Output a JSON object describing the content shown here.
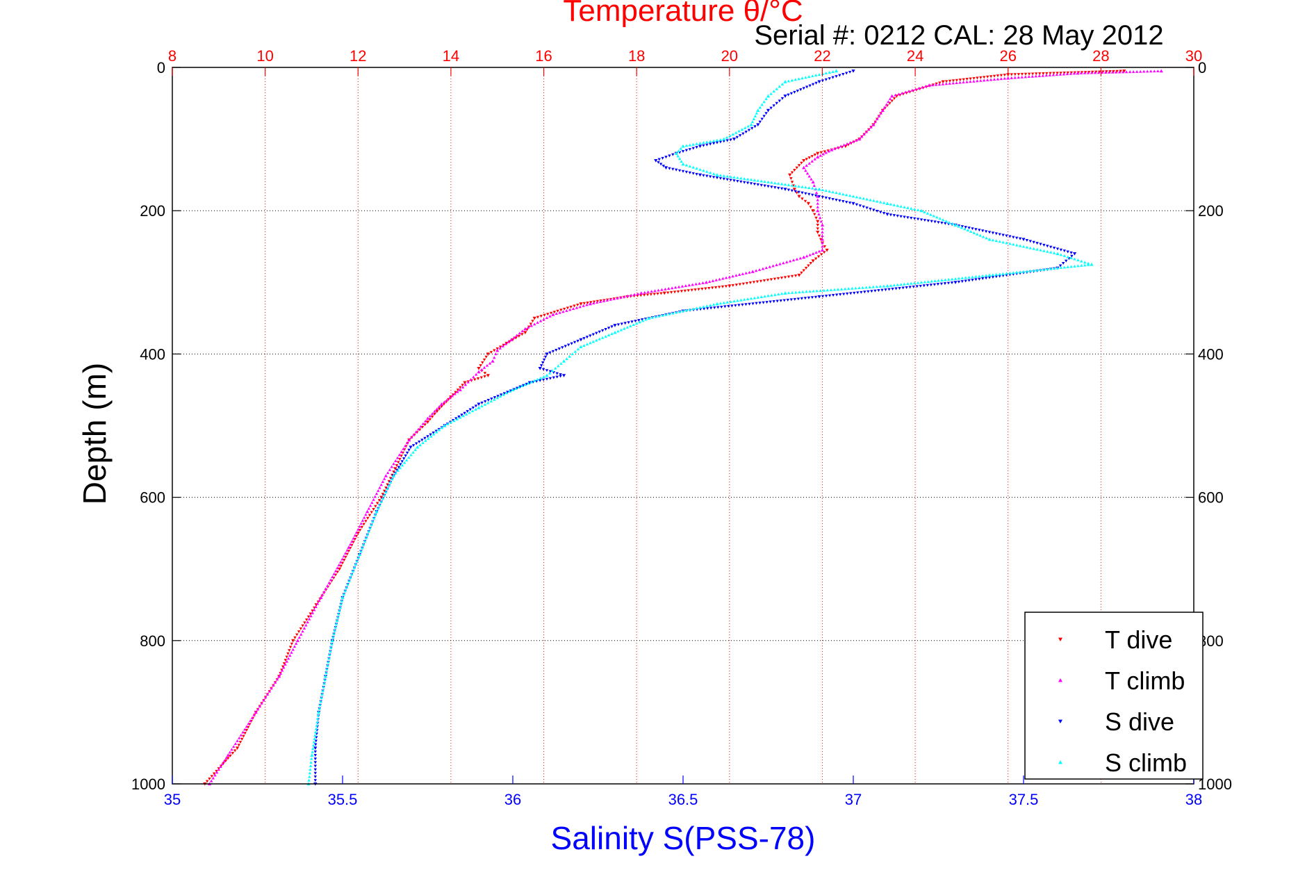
{
  "chart_data": {
    "type": "scatter",
    "title": "Temperature θ/°C",
    "subtitle": "Serial #: 0212  CAL: 28 May 2012",
    "ylabel": "Depth (m)",
    "xlabel": "Salinity S(PSS-78)",
    "y_axis": {
      "lim": [
        0,
        1000
      ],
      "reversed": true,
      "ticks": [
        0,
        200,
        400,
        600,
        800,
        1000
      ],
      "tick_labels": [
        "0",
        "200",
        "400",
        "600",
        "800",
        "1000"
      ]
    },
    "x_axis_top": {
      "label": "Temperature θ/°C",
      "lim": [
        8,
        30
      ],
      "ticks": [
        8,
        10,
        12,
        14,
        16,
        18,
        20,
        22,
        24,
        26,
        28,
        30
      ],
      "tick_labels": [
        "8",
        "10",
        "12",
        "14",
        "16",
        "18",
        "20",
        "22",
        "24",
        "26",
        "28",
        "30"
      ],
      "color": "#ff0000",
      "grid": "dotted"
    },
    "x_axis_bottom": {
      "label": "Salinity S(PSS-78)",
      "lim": [
        35,
        38
      ],
      "ticks": [
        35,
        35.5,
        36,
        36.5,
        37,
        37.5,
        38
      ],
      "tick_labels": [
        "35",
        "35.5",
        "36",
        "36.5",
        "37",
        "37.5",
        "38"
      ],
      "color": "#0000ff"
    },
    "legend": {
      "position": "bottom-right",
      "entries": [
        "T dive",
        "T climb",
        "S dive",
        "S climb"
      ]
    },
    "series": [
      {
        "name": "T dive",
        "axis": "temperature",
        "color": "#ff0000",
        "marker": "triangle-down",
        "points": [
          [
            28.5,
            5
          ],
          [
            26,
            10
          ],
          [
            24.6,
            20
          ],
          [
            23.6,
            40
          ],
          [
            23.3,
            60
          ],
          [
            23.1,
            80
          ],
          [
            22.8,
            100
          ],
          [
            22.5,
            110
          ],
          [
            21.9,
            120
          ],
          [
            21.6,
            130
          ],
          [
            21.3,
            150
          ],
          [
            21.4,
            170
          ],
          [
            21.5,
            180
          ],
          [
            21.7,
            190
          ],
          [
            21.8,
            200
          ],
          [
            21.9,
            215
          ],
          [
            21.9,
            230
          ],
          [
            22.0,
            245
          ],
          [
            22.1,
            255
          ],
          [
            21.8,
            270
          ],
          [
            21.5,
            290
          ],
          [
            20.0,
            305
          ],
          [
            18.6,
            315
          ],
          [
            17.8,
            320
          ],
          [
            16.8,
            330
          ],
          [
            15.8,
            350
          ],
          [
            15.6,
            370
          ],
          [
            15.2,
            385
          ],
          [
            14.8,
            400
          ],
          [
            14.6,
            420
          ],
          [
            14.8,
            430
          ],
          [
            14.3,
            440
          ],
          [
            14.0,
            460
          ],
          [
            13.7,
            480
          ],
          [
            13.5,
            495
          ],
          [
            13.1,
            520
          ],
          [
            12.8,
            560
          ],
          [
            12.5,
            600
          ],
          [
            12.0,
            650
          ],
          [
            11.6,
            700
          ],
          [
            11.1,
            750
          ],
          [
            10.6,
            800
          ],
          [
            10.3,
            850
          ],
          [
            9.8,
            900
          ],
          [
            9.4,
            950
          ],
          [
            8.7,
            1000
          ]
        ]
      },
      {
        "name": "T climb",
        "axis": "temperature",
        "color": "#ff00ff",
        "marker": "triangle-up",
        "points": [
          [
            29.3,
            5
          ],
          [
            27.5,
            8
          ],
          [
            26,
            15
          ],
          [
            24.3,
            25
          ],
          [
            23.5,
            40
          ],
          [
            23.3,
            60
          ],
          [
            23.1,
            80
          ],
          [
            22.8,
            100
          ],
          [
            22.2,
            115
          ],
          [
            21.9,
            125
          ],
          [
            21.6,
            140
          ],
          [
            21.8,
            160
          ],
          [
            21.9,
            180
          ],
          [
            21.9,
            200
          ],
          [
            22.0,
            220
          ],
          [
            22.0,
            240
          ],
          [
            22.0,
            255
          ],
          [
            21.6,
            265
          ],
          [
            20.5,
            285
          ],
          [
            19.5,
            300
          ],
          [
            18.1,
            315
          ],
          [
            17.0,
            330
          ],
          [
            16.2,
            345
          ],
          [
            15.6,
            365
          ],
          [
            15.3,
            380
          ],
          [
            15.0,
            395
          ],
          [
            14.9,
            410
          ],
          [
            14.6,
            425
          ],
          [
            14.2,
            450
          ],
          [
            13.8,
            470
          ],
          [
            13.5,
            490
          ],
          [
            13.1,
            520
          ],
          [
            12.6,
            570
          ],
          [
            12.2,
            620
          ],
          [
            11.8,
            670
          ],
          [
            11.2,
            740
          ],
          [
            10.7,
            800
          ],
          [
            10.3,
            850
          ],
          [
            9.8,
            900
          ],
          [
            9.2,
            960
          ],
          [
            8.8,
            1000
          ]
        ]
      },
      {
        "name": "S dive",
        "axis": "salinity",
        "color": "#0000ff",
        "marker": "triangle-down",
        "points": [
          [
            37.0,
            5
          ],
          [
            36.9,
            20
          ],
          [
            36.8,
            40
          ],
          [
            36.75,
            60
          ],
          [
            36.72,
            80
          ],
          [
            36.65,
            100
          ],
          [
            36.55,
            110
          ],
          [
            36.48,
            120
          ],
          [
            36.42,
            130
          ],
          [
            36.45,
            140
          ],
          [
            36.55,
            150
          ],
          [
            36.8,
            170
          ],
          [
            37.0,
            190
          ],
          [
            37.1,
            205
          ],
          [
            37.3,
            220
          ],
          [
            37.5,
            240
          ],
          [
            37.65,
            260
          ],
          [
            37.6,
            280
          ],
          [
            37.3,
            300
          ],
          [
            36.9,
            320
          ],
          [
            36.5,
            340
          ],
          [
            36.3,
            360
          ],
          [
            36.2,
            380
          ],
          [
            36.1,
            400
          ],
          [
            36.08,
            420
          ],
          [
            36.15,
            430
          ],
          [
            36.05,
            440
          ],
          [
            35.9,
            470
          ],
          [
            35.8,
            500
          ],
          [
            35.7,
            530
          ],
          [
            35.65,
            570
          ],
          [
            35.6,
            620
          ],
          [
            35.55,
            680
          ],
          [
            35.5,
            740
          ],
          [
            35.47,
            800
          ],
          [
            35.45,
            850
          ],
          [
            35.43,
            900
          ],
          [
            35.42,
            950
          ],
          [
            35.42,
            1000
          ]
        ]
      },
      {
        "name": "S climb",
        "axis": "salinity",
        "color": "#00ffff",
        "marker": "triangle-up",
        "points": [
          [
            36.95,
            5
          ],
          [
            36.8,
            20
          ],
          [
            36.75,
            40
          ],
          [
            36.72,
            60
          ],
          [
            36.7,
            80
          ],
          [
            36.62,
            100
          ],
          [
            36.5,
            110
          ],
          [
            36.48,
            120
          ],
          [
            36.5,
            135
          ],
          [
            36.6,
            150
          ],
          [
            36.9,
            170
          ],
          [
            37.1,
            190
          ],
          [
            37.2,
            200
          ],
          [
            37.3,
            220
          ],
          [
            37.4,
            240
          ],
          [
            37.6,
            260
          ],
          [
            37.7,
            275
          ],
          [
            37.4,
            290
          ],
          [
            37.1,
            305
          ],
          [
            36.8,
            315
          ],
          [
            36.6,
            330
          ],
          [
            36.4,
            350
          ],
          [
            36.3,
            370
          ],
          [
            36.2,
            390
          ],
          [
            36.15,
            410
          ],
          [
            36.1,
            430
          ],
          [
            36.0,
            450
          ],
          [
            35.9,
            475
          ],
          [
            35.8,
            500
          ],
          [
            35.72,
            530
          ],
          [
            35.65,
            570
          ],
          [
            35.6,
            620
          ],
          [
            35.55,
            680
          ],
          [
            35.5,
            740
          ],
          [
            35.47,
            800
          ],
          [
            35.45,
            850
          ],
          [
            35.43,
            900
          ],
          [
            35.41,
            960
          ],
          [
            35.4,
            1000
          ]
        ]
      }
    ]
  }
}
